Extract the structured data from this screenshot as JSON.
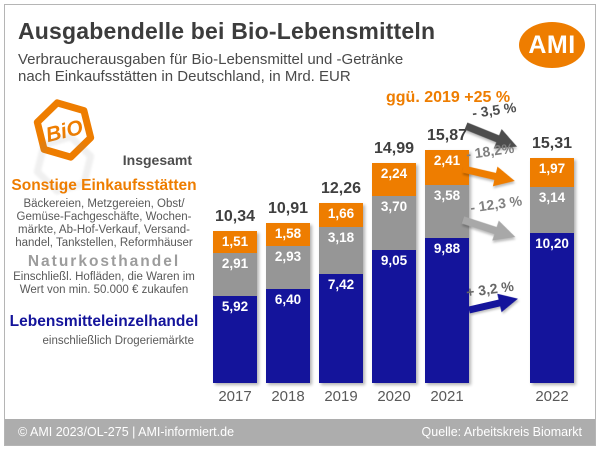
{
  "header": {
    "title": "Ausgabendelle bei Bio-Lebensmitteln",
    "subtitle": "Verbraucherausgaben für Bio-Lebensmittel und -Getränke\nnach Einkaufsstätten in Deutschland, in Mrd. EUR",
    "logo": "AMI"
  },
  "bio_badge": "BiO",
  "legend": {
    "insgesamt": "Insgesamt",
    "sonstige": {
      "label": "Sonstige Einkaufsstätten",
      "desc": "Bäckereien, Metzgereien, Obst/\nGemüse-Fachgeschäfte, Wochen-\nmärkte, Ab-Hof-Verkauf, Versand-\nhandel, Tankstellen, Reformhäuser"
    },
    "naturkost": {
      "label": "Naturkosthandel",
      "desc": "Einschließl. Hofläden, die Waren im\nWert von min. 50.000 € zukaufen"
    },
    "leh": {
      "label": "Lebensmitteleinzelhandel",
      "desc": "einschließlich Drogeriemärkte"
    }
  },
  "annotations": {
    "headline": "ggü. 2019 +25 %",
    "changes": [
      {
        "label": "- 3,5 %",
        "applies_to": "Insgesamt",
        "arrow_color": "#4d4d4d",
        "direction": "down"
      },
      {
        "label": "- 18,2%",
        "applies_to": "Sonstige Einkaufsstätten",
        "arrow_color": "#ee7d00",
        "direction": "down"
      },
      {
        "label": "- 12,3 %",
        "applies_to": "Naturkosthandel",
        "arrow_color": "#a8a8a8",
        "direction": "down"
      },
      {
        "label": "+ 3,2 %",
        "applies_to": "Lebensmitteleinzelhandel",
        "arrow_color": "#14149b",
        "direction": "up"
      }
    ]
  },
  "chart_data": {
    "type": "bar",
    "stacked": true,
    "unit": "Mrd. EUR",
    "categories": [
      "2017",
      "2018",
      "2019",
      "2020",
      "2021",
      "2022"
    ],
    "series": [
      {
        "id": "leh",
        "name": "Lebensmitteleinzelhandel",
        "color": "#14149b",
        "values": [
          5.92,
          6.4,
          7.42,
          9.05,
          9.88,
          10.2
        ],
        "value_labels": [
          "5,92",
          "6,40",
          "7,42",
          "9,05",
          "9,88",
          "10,20"
        ]
      },
      {
        "id": "naturkost",
        "name": "Naturkosthandel",
        "color": "#969696",
        "values": [
          2.91,
          2.93,
          3.18,
          3.7,
          3.58,
          3.14
        ],
        "value_labels": [
          "2,91",
          "2,93",
          "3,18",
          "3,70",
          "3,58",
          "3,14"
        ]
      },
      {
        "id": "sonstige",
        "name": "Sonstige Einkaufsstätten",
        "color": "#ee7d00",
        "values": [
          1.51,
          1.58,
          1.66,
          2.24,
          2.41,
          1.97
        ],
        "value_labels": [
          "1,51",
          "1,58",
          "1,66",
          "2,24",
          "2,41",
          "1,97"
        ]
      }
    ],
    "totals": [
      10.34,
      10.91,
      12.26,
      14.99,
      15.87,
      15.31
    ],
    "totals_labels": [
      "10,34",
      "10,91",
      "12,26",
      "14,99",
      "15,87",
      "15,31"
    ],
    "ylim": [
      0,
      17
    ],
    "grid": false,
    "legend_position": "left"
  },
  "footer": {
    "left": "© AMI 2023/OL-275 | AMI-informiert.de",
    "right": "Quelle: Arbeitskreis Biomarkt"
  },
  "colors": {
    "orange": "#ee7d00",
    "navy": "#14149b",
    "segment_gray": "#969696",
    "title_gray": "#3c3c3c",
    "text_gray": "#595959",
    "footer_bg": "#adadad"
  }
}
